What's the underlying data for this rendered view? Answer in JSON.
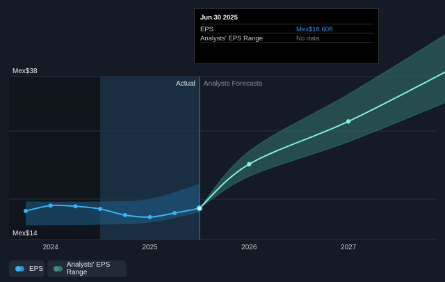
{
  "chart_data": {
    "type": "line",
    "y_axis": {
      "top_label": "Mex$38",
      "bottom_label": "Mex$14",
      "ylim": [
        14,
        38
      ]
    },
    "x_axis": {
      "tick_labels": [
        "2024",
        "2025",
        "2026",
        "2027"
      ],
      "tick_years": [
        2024,
        2025,
        2026,
        2027
      ],
      "xlim": [
        2023.75,
        2027.98
      ]
    },
    "zone_labels": {
      "actual": "Actual",
      "forecast": "Analysts Forecasts"
    },
    "series": [
      {
        "name": "EPS",
        "color": "#33b6f5",
        "x": [
          2023.75,
          2024.0,
          2024.25,
          2024.5,
          2024.75,
          2025.0,
          2025.25,
          2025.5
        ],
        "y": [
          18.2,
          19.0,
          18.9,
          18.5,
          17.6,
          17.3,
          17.9,
          18.608
        ]
      },
      {
        "name": "EPS forecast",
        "color": "#7ff1e6",
        "x": [
          2025.5,
          2026.0,
          2027.0,
          2027.98
        ],
        "y": [
          18.608,
          25.1,
          31.4,
          38.7
        ]
      }
    ],
    "analysts_range": {
      "name": "Analysts' EPS Range",
      "color": "#3a8f86",
      "x": [
        2025.5,
        2026.0,
        2027.0,
        2027.98
      ],
      "low": [
        18.608,
        23.3,
        28.4,
        34.2
      ],
      "high": [
        18.608,
        27.0,
        35.4,
        44.2
      ]
    },
    "actual_range": {
      "x": [
        2023.75,
        2024.5,
        2025.0,
        2025.5
      ],
      "low": [
        16.1,
        16.2,
        16.5,
        18.0
      ],
      "high": [
        19.6,
        19.6,
        20.0,
        22.2
      ]
    },
    "highlight_start": 2024.5,
    "highlight_end": 2025.5
  },
  "tooltip": {
    "date": "Jun 30 2025",
    "rows": [
      {
        "label": "EPS",
        "value": "Mex$18.608",
        "value_color": "#3b8de6"
      },
      {
        "label": "Analysts' EPS Range",
        "value": "No data",
        "value_color": "#7a7f87"
      }
    ]
  },
  "legend": {
    "eps_label": "EPS",
    "eps_colors": [
      "#33b6f5",
      "#33b6f5"
    ],
    "range_label": "Analysts' EPS Range",
    "range_colors": [
      "#3a8f86",
      "#3a8f86"
    ]
  }
}
